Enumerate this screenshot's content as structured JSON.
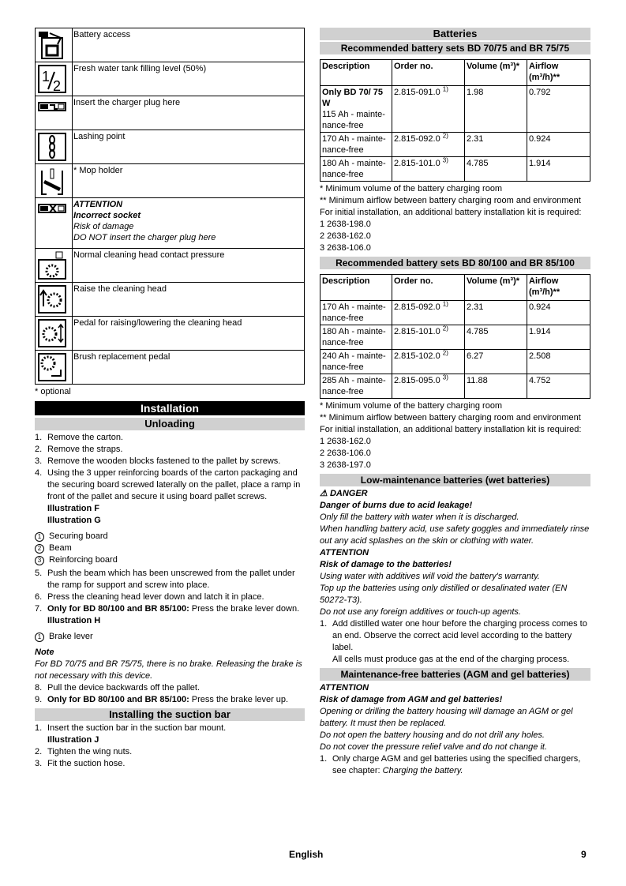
{
  "symbols": [
    {
      "icon": "battery-access-icon",
      "text": "Battery access"
    },
    {
      "icon": "half-fill-icon",
      "text": "Fresh water tank filling level (50%)"
    },
    {
      "icon": "charger-plug-icon",
      "text": "Insert the charger plug here"
    },
    {
      "icon": "chain-icon",
      "text": "Lashing point"
    },
    {
      "icon": "mop-holder-icon",
      "text": "* Mop holder"
    },
    {
      "icon": "incorrect-socket-icon",
      "lines": [
        "ATTENTION",
        "Incorrect socket",
        "Risk of damage",
        "DO NOT insert the charger plug here"
      ]
    },
    {
      "icon": "contact-pressure-icon",
      "text": "Normal cleaning head contact pressure"
    },
    {
      "icon": "raise-head-icon",
      "text": "Raise the cleaning head"
    },
    {
      "icon": "pedal-raise-lower-icon",
      "text": "Pedal for raising/lowering the cleaning head"
    },
    {
      "icon": "brush-replacement-icon",
      "text": "Brush replacement pedal"
    }
  ],
  "optional_note": "* optional",
  "installation": {
    "title": "Installation",
    "unloading_title": "Unloading",
    "steps_a": [
      "Remove the carton.",
      "Remove the straps.",
      "Remove the wooden blocks fastened to the pallet by screws.",
      "Using the 3 upper reinforcing boards of the carton packaging and the securing board screwed laterally on the pallet, place a ramp in front of the pallet and secure it using board pallet screws."
    ],
    "illus_fg": [
      "Illustration F",
      "Illustration G"
    ],
    "legend_a": [
      "Securing board",
      "Beam",
      "Reinforcing board"
    ],
    "step5": "Push the beam which has been unscrewed from the pallet under the ramp for support and screw into place.",
    "step6": "Press the cleaning head lever down and latch it in place.",
    "step7_bold": "Only for BD 80/100 and BR 85/100:",
    "step7_rest": " Press the brake lever down.",
    "illus_h": "Illustration H",
    "legend_b": "Brake lever",
    "note_title": "Note",
    "note_text": "For BD 70/75 and BR 75/75, there is no brake. Releasing the brake is not necessary with this device.",
    "step8": "Pull the device backwards off the pallet.",
    "step9_bold": "Only for BD 80/100 and BR 85/100:",
    "step9_rest": " Press the brake lever up.",
    "suction_title": "Installing the suction bar",
    "suction_step1": "Insert the suction bar in the suction bar mount.",
    "illus_j": "Illustration J",
    "suction_step2": "Tighten the wing nuts.",
    "suction_step3": "Fit the suction hose."
  },
  "batteries": {
    "title": "Batteries",
    "set1_title": "Recommended battery sets BD 70/75 and BR 75/75",
    "headers": [
      "Description",
      "Order no.",
      "Volume (m³)*",
      "Airflow (m³/h)**"
    ],
    "set1_rows": [
      {
        "desc_bold": "Only BD 70/ 75 W",
        "desc": "115 Ah - mainte-nance-free",
        "order": "2.815-091.0",
        "sup": "1)",
        "volume": "1.98",
        "airflow": "0.792"
      },
      {
        "desc": "170 Ah - mainte-nance-free",
        "order": "2.815-092.0",
        "sup": "2)",
        "volume": "2.31",
        "airflow": "0.924"
      },
      {
        "desc": "180 Ah - mainte-nance-free",
        "order": "2.815-101.0",
        "sup": "3)",
        "volume": "4.785",
        "airflow": "1.914"
      }
    ],
    "note_volume": "* Minimum volume of the battery charging room",
    "note_airflow": "** Minimum airflow between battery charging room and environment",
    "kit_note": "For initial installation, an additional battery installation kit is required:",
    "set1_kits": [
      "1  2638-198.0",
      "2  2638-162.0",
      "3  2638-106.0"
    ],
    "set2_title": "Recommended battery sets BD 80/100 and BR 85/100",
    "set2_rows": [
      {
        "desc": "170 Ah - mainte-nance-free",
        "order": "2.815-092.0",
        "sup": "1)",
        "volume": "2.31",
        "airflow": "0.924"
      },
      {
        "desc": "180 Ah - mainte-nance-free",
        "order": "2.815-101.0",
        "sup": "2)",
        "volume": "4.785",
        "airflow": "1.914"
      },
      {
        "desc": "240 Ah - mainte-nance-free",
        "order": "2.815-102.0",
        "sup": "2)",
        "volume": "6.27",
        "airflow": "2.508"
      },
      {
        "desc": "285 Ah - mainte-nance-free",
        "order": "2.815-095.0",
        "sup": "3)",
        "volume": "11.88",
        "airflow": "4.752"
      }
    ],
    "set2_kits": [
      "1  2638-162.0",
      "2  2638-106.0",
      "3  2638-197.0"
    ],
    "wet_title": "Low-maintenance batteries (wet batteries)",
    "danger_label": "DANGER",
    "danger_sub": "Danger of burns due to acid leakage!",
    "danger_lines": [
      "Only fill the battery with water when it is discharged.",
      "When handling battery acid, use safety goggles and immediately rinse out any acid splashes on the skin or clothing with water."
    ],
    "attention_label": "ATTENTION",
    "attention_sub": "Risk of damage to the batteries!",
    "attention_lines": [
      "Using water with additives will void the battery's warranty.",
      "Top up the batteries using only distilled or desalinated water (EN 50272-T3).",
      "Do not use any foreign additives or touch-up agents."
    ],
    "wet_step1": "Add distilled water one hour before the charging process comes to an end. Observe the correct acid level according to the battery label.",
    "wet_step1_extra": "All cells must produce gas at the end of the charging process.",
    "agm_title": "Maintenance-free batteries (AGM and gel batteries)",
    "agm_attention": "ATTENTION",
    "agm_sub": "Risk of damage from AGM and gel batteries!",
    "agm_lines": [
      "Opening or drilling the battery housing will damage an AGM or gel battery. It must then be replaced.",
      "Do not open the battery housing and do not drill any holes.",
      "Do not cover the pressure relief valve and do not change it."
    ],
    "agm_step1": "Only charge AGM and gel batteries using the specified chargers, see chapter: ",
    "agm_step1_link": "Charging the battery."
  },
  "footer": {
    "language": "English",
    "page": "9"
  }
}
